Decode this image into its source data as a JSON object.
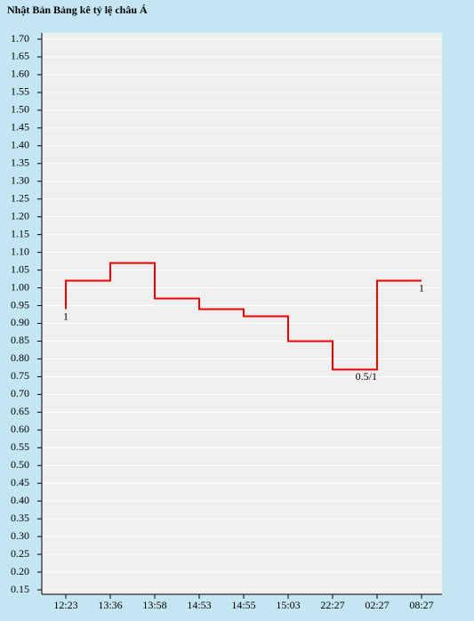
{
  "chart_data": {
    "type": "step",
    "title": "Nhật Bản Bảng kê tỷ lệ châu Á",
    "categories": [
      "12:23",
      "13:36",
      "13:58",
      "14:53",
      "14:55",
      "15:03",
      "22:27",
      "02:27",
      "08:27"
    ],
    "open_value": 0.94,
    "series": [
      {
        "color": "#ee0000",
        "values": [
          1.02,
          1.07,
          0.97,
          0.94,
          0.92,
          0.85,
          0.77,
          1.02,
          1.02
        ]
      }
    ],
    "annotations": [
      {
        "text": "1",
        "x": "12:23"
      },
      {
        "text": "0.5/1",
        "x": "02:27"
      },
      {
        "text": "1",
        "x": "08:27"
      }
    ],
    "ylim": [
      0.15,
      1.7
    ],
    "yticks": [
      {
        "value": 0.15,
        "label": "0.15"
      },
      {
        "value": 0.2,
        "label": "0.20"
      },
      {
        "value": 0.25,
        "label": "0.25"
      },
      {
        "value": 0.3,
        "label": "0.30"
      },
      {
        "value": 0.35,
        "label": "0.35"
      },
      {
        "value": 0.4,
        "label": "0.40"
      },
      {
        "value": 0.45,
        "label": "0.45"
      },
      {
        "value": 0.5,
        "label": "0.50"
      },
      {
        "value": 0.55,
        "label": "0.55"
      },
      {
        "value": 0.6,
        "label": "0.60"
      },
      {
        "value": 0.65,
        "label": "0.65"
      },
      {
        "value": 0.7,
        "label": "0.70"
      },
      {
        "value": 0.75,
        "label": "0.75"
      },
      {
        "value": 0.8,
        "label": "0.80"
      },
      {
        "value": 0.85,
        "label": "0.85"
      },
      {
        "value": 0.9,
        "label": "0.90"
      },
      {
        "value": 0.95,
        "label": "0.95"
      },
      {
        "value": 1.0,
        "label": "1.00"
      },
      {
        "value": 1.05,
        "label": "1.05"
      },
      {
        "value": 1.1,
        "label": "1.10"
      },
      {
        "value": 1.15,
        "label": "1.15"
      },
      {
        "value": 1.2,
        "label": "1.20"
      },
      {
        "value": 1.25,
        "label": "1.25"
      },
      {
        "value": 1.3,
        "label": "1.30"
      },
      {
        "value": 1.35,
        "label": "1.35"
      },
      {
        "value": 1.4,
        "label": "1.40"
      },
      {
        "value": 1.45,
        "label": "1.45"
      },
      {
        "value": 1.5,
        "label": "1.50"
      },
      {
        "value": 1.55,
        "label": "1.55"
      },
      {
        "value": 1.6,
        "label": "1.60"
      },
      {
        "value": 1.65,
        "label": "1.65"
      },
      {
        "value": 1.7,
        "label": "1.70"
      }
    ],
    "grid": true
  }
}
